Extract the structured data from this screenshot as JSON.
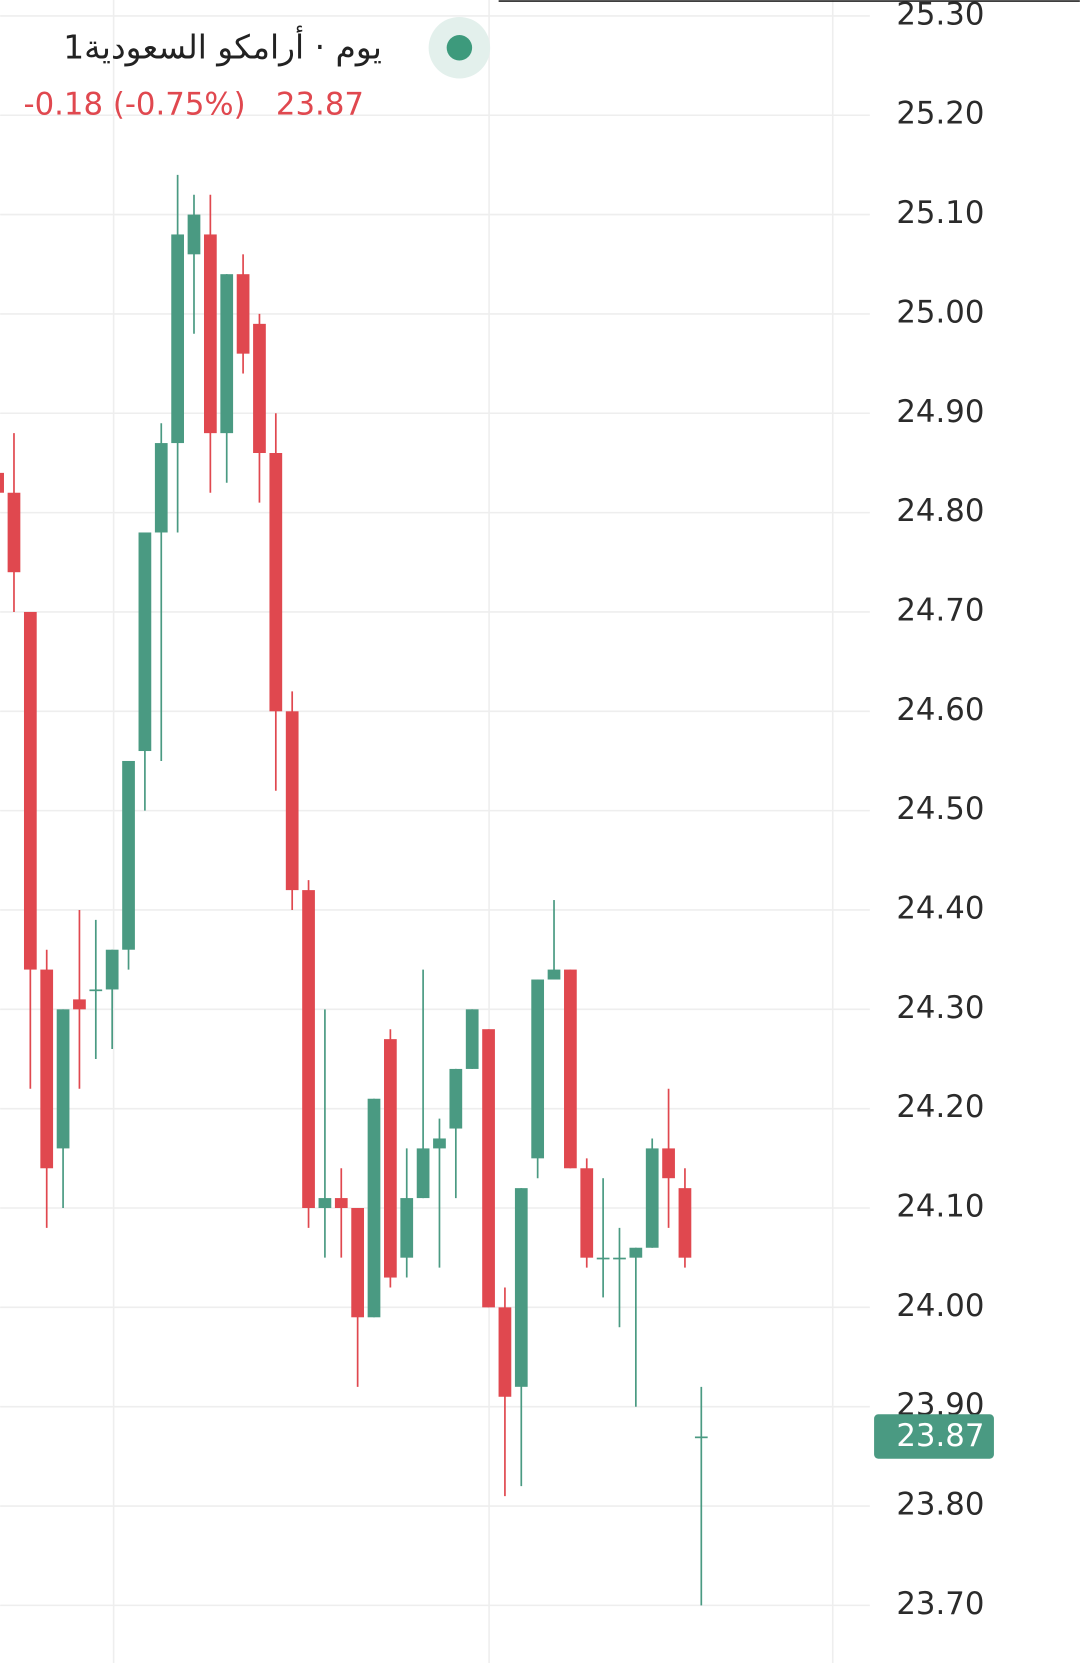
{
  "chart_data": {
    "type": "candlestick",
    "title": "1يوم · أرامكو السعودية",
    "subtitle": "-0.18 (-0.75%)",
    "last_price": 23.87,
    "up_color": "#4a9a82",
    "down_color": "#e0484f",
    "open": [
      24.84,
      24.82,
      24.7,
      24.34,
      24.16,
      24.31,
      24.32,
      24.32,
      24.36,
      24.56,
      24.78,
      24.87,
      25.06,
      25.08,
      24.88,
      25.04,
      24.99,
      24.86,
      24.6,
      24.42,
      24.1,
      24.11,
      24.1,
      23.99,
      24.27,
      24.05,
      24.11,
      24.16,
      24.18,
      24.24,
      24.28,
      24.0,
      23.92,
      24.15,
      24.33,
      24.34,
      24.14,
      24.05,
      24.05,
      24.05,
      24.06,
      24.16,
      24.12,
      23.87
    ],
    "high": [
      24.85,
      24.88,
      24.7,
      24.36,
      24.3,
      24.4,
      24.39,
      24.36,
      24.55,
      24.78,
      24.89,
      25.14,
      25.12,
      25.12,
      25.04,
      25.06,
      25.0,
      24.9,
      24.62,
      24.43,
      24.3,
      24.14,
      24.1,
      24.21,
      24.28,
      24.16,
      24.34,
      24.19,
      24.24,
      24.3,
      24.28,
      24.02,
      24.12,
      24.33,
      24.41,
      24.34,
      24.15,
      24.13,
      24.08,
      24.06,
      24.17,
      24.22,
      24.14,
      23.92
    ],
    "low": [
      24.81,
      24.7,
      24.22,
      24.08,
      24.1,
      24.22,
      24.25,
      24.26,
      24.34,
      24.5,
      24.55,
      24.78,
      24.98,
      24.82,
      24.83,
      24.94,
      24.81,
      24.52,
      24.4,
      24.08,
      24.05,
      24.05,
      23.92,
      23.99,
      24.02,
      24.03,
      24.11,
      24.04,
      24.11,
      24.24,
      24.0,
      23.81,
      23.82,
      24.13,
      24.33,
      24.14,
      24.04,
      24.01,
      23.98,
      23.9,
      24.06,
      24.08,
      24.04,
      23.7
    ],
    "close": [
      24.82,
      24.74,
      24.34,
      24.14,
      24.3,
      24.3,
      24.32,
      24.36,
      24.55,
      24.78,
      24.87,
      25.08,
      25.1,
      24.88,
      25.04,
      24.96,
      24.86,
      24.6,
      24.42,
      24.1,
      24.11,
      24.1,
      23.99,
      24.21,
      24.03,
      24.11,
      24.16,
      24.17,
      24.24,
      24.3,
      24.0,
      23.91,
      24.12,
      24.33,
      24.34,
      24.14,
      24.05,
      24.05,
      24.05,
      24.06,
      24.16,
      24.13,
      24.05,
      23.87
    ],
    "ylim": [
      23.642,
      25.316
    ],
    "yticks": [
      {
        "value": 23.7,
        "label": "23.70"
      },
      {
        "value": 23.8,
        "label": "23.80"
      },
      {
        "value": 23.9,
        "label": "23.90"
      },
      {
        "value": 24.0,
        "label": "24.00"
      },
      {
        "value": 24.1,
        "label": "24.10"
      },
      {
        "value": 24.2,
        "label": "24.20"
      },
      {
        "value": 24.3,
        "label": "24.30"
      },
      {
        "value": 24.4,
        "label": "24.40"
      },
      {
        "value": 24.5,
        "label": "24.50"
      },
      {
        "value": 24.6,
        "label": "24.60"
      },
      {
        "value": 24.7,
        "label": "24.70"
      },
      {
        "value": 24.8,
        "label": "24.80"
      },
      {
        "value": 24.9,
        "label": "24.90"
      },
      {
        "value": 25.0,
        "label": "25.00"
      },
      {
        "value": 25.1,
        "label": "25.10"
      },
      {
        "value": 25.2,
        "label": "25.20"
      },
      {
        "value": 25.3,
        "label": "25.30"
      }
    ],
    "grid": true
  }
}
